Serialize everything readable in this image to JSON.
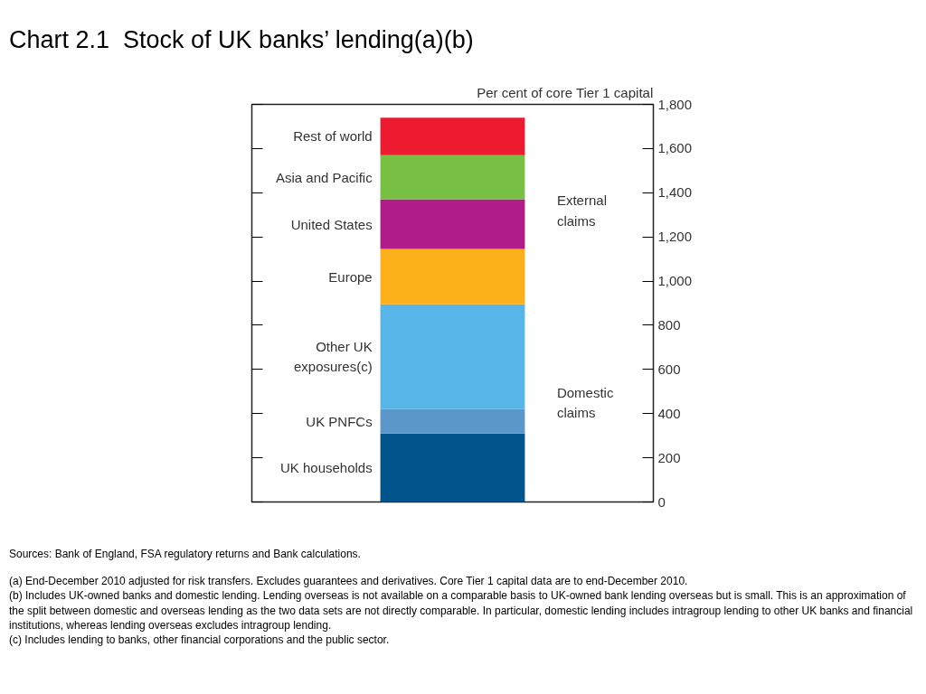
{
  "chart_data": {
    "type": "bar",
    "title": "Chart 2.1  Stock of UK banks’ lending(a)(b)",
    "ylabel": "Per cent of core Tier 1 capital",
    "categories": [
      null
    ],
    "stacked": true,
    "grid": false,
    "series": [
      {
        "name": "UK households",
        "color": "#00558c",
        "values": [
          310
        ]
      },
      {
        "name": "UK PNFCs",
        "color": "#5b97c9",
        "values": [
          110
        ]
      },
      {
        "name": "Other UK exposures(c)",
        "color": "#57b5e7",
        "values": [
          475
        ]
      },
      {
        "name": "Europe",
        "color": "#fbb01a",
        "values": [
          250
        ]
      },
      {
        "name": "United States",
        "color": "#b01c89",
        "values": [
          225
        ]
      },
      {
        "name": "Asia and Pacific",
        "color": "#77c043",
        "values": [
          200
        ]
      },
      {
        "name": "Rest of world",
        "color": "#ed1b2f",
        "values": [
          170
        ]
      }
    ],
    "ylim": [
      0,
      1800
    ],
    "yticks": [
      0,
      200,
      400,
      600,
      800,
      {
        "value": 1000,
        "label": "1,000"
      },
      {
        "value": 1200,
        "label": "1,200"
      },
      {
        "value": 1400,
        "label": "1,400"
      },
      {
        "value": 1600,
        "label": "1,600"
      },
      {
        "value": 1800,
        "label": "1,800"
      }
    ],
    "annotations": [
      "External claims",
      "Domestic claims",
      "Sources:  Bank of England, FSA regulatory returns and Bank calculations.",
      "(a)  End-December 2010 adjusted for risk transfers.  Excludes guarantees and derivatives.  Core Tier 1 capital data are to end-December 2010.",
      "(b) Includes UK-owned banks and domestic lending.  Lending overseas is not available on a comparable basis to UK-owned bank lending overseas but is small.  This is an approximation of the split between domestic and overseas lending as the two data sets are not directly comparable.  In particular, domestic lending includes intragroup lending to other UK banks and financial institutions, whereas lending overseas excludes intragroup lending.",
      "(c)  Includes lending to banks, other financial corporations and the public sector."
    ]
  }
}
